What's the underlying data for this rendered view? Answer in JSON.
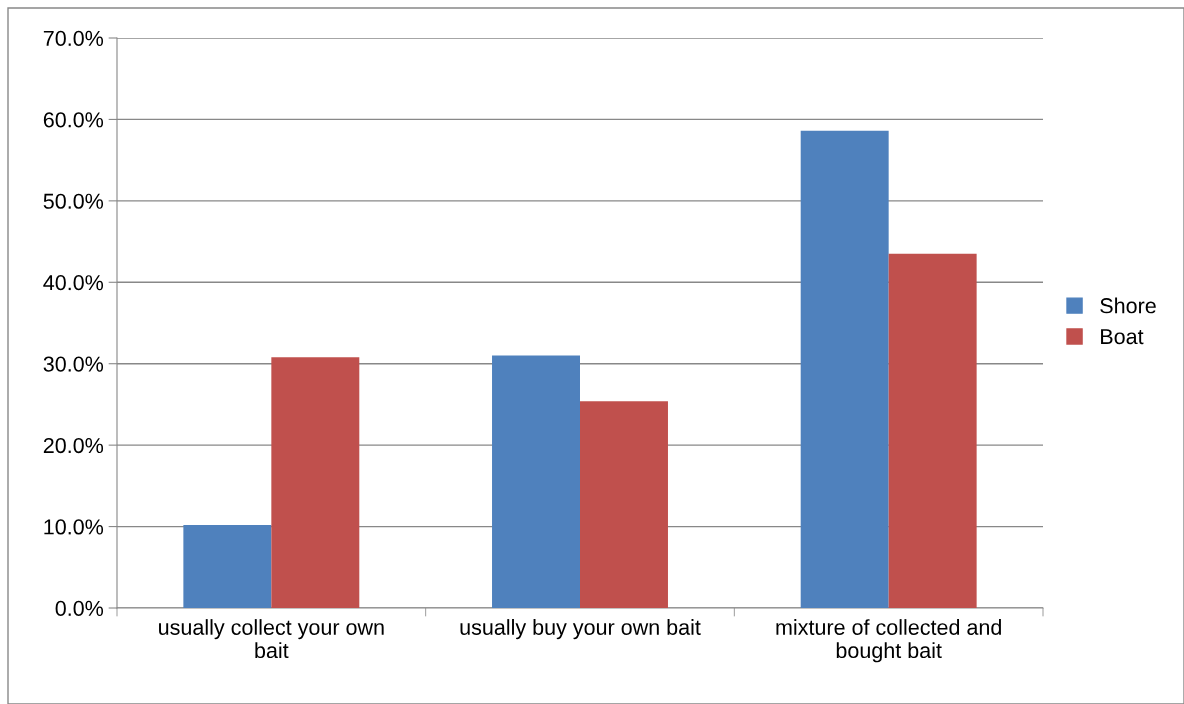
{
  "chart_data": {
    "type": "bar",
    "categories": [
      "usually collect your own\nbait",
      "usually buy your own bait",
      "mixture of collected and\nbought bait"
    ],
    "series": [
      {
        "name": "Shore",
        "color": "#4f81bd",
        "values": [
          10.2,
          31.0,
          58.6
        ]
      },
      {
        "name": "Boat",
        "color": "#c0504d",
        "values": [
          30.8,
          25.4,
          43.5
        ]
      }
    ],
    "ylim": [
      0,
      70
    ],
    "yticks": [
      {
        "value": 0,
        "label": "0.0%"
      },
      {
        "value": 10,
        "label": "10.0%"
      },
      {
        "value": 20,
        "label": "20.0%"
      },
      {
        "value": 30,
        "label": "30.0%"
      },
      {
        "value": 40,
        "label": "40.0%"
      },
      {
        "value": 50,
        "label": "50.0%"
      },
      {
        "value": 60,
        "label": "60.0%"
      },
      {
        "value": 70,
        "label": "70.0%"
      }
    ],
    "grid": "y",
    "legend": "right"
  }
}
